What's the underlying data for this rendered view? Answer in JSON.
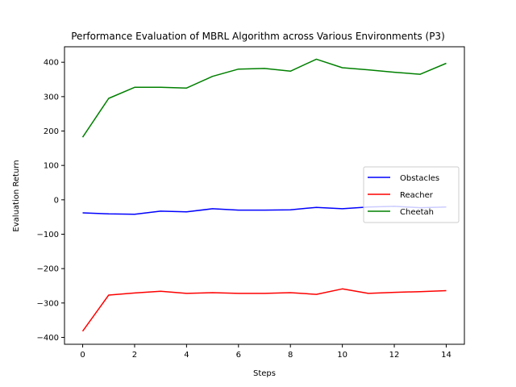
{
  "chart_data": {
    "type": "line",
    "title": "Performance Evaluation of MBRL Algorithm across Various Environments (P3)",
    "xlabel": "Steps",
    "ylabel": "Evaluation Return",
    "xlim": [
      -0.7,
      14.7
    ],
    "ylim": [
      -420,
      445
    ],
    "xticks": [
      0,
      2,
      4,
      6,
      8,
      10,
      12,
      14
    ],
    "yticks": [
      -400,
      -300,
      -200,
      -100,
      0,
      100,
      200,
      300,
      400
    ],
    "grid": false,
    "legend_position": "center-right",
    "x": [
      0,
      1,
      2,
      3,
      4,
      5,
      6,
      7,
      8,
      9,
      10,
      11,
      12,
      13,
      14
    ],
    "series": [
      {
        "name": "Obstacles",
        "color": "#0000ff",
        "values": [
          -38,
          -41,
          -42,
          -33,
          -35,
          -26,
          -30,
          -30,
          -29,
          -22,
          -26,
          -21,
          -19,
          -23,
          -21
        ]
      },
      {
        "name": "Reacher",
        "color": "#ff0000",
        "values": [
          -382,
          -277,
          -271,
          -266,
          -272,
          -270,
          -272,
          -272,
          -270,
          -275,
          -259,
          -272,
          -269,
          -267,
          -264
        ]
      },
      {
        "name": "Cheetah",
        "color": "#008000",
        "values": [
          182,
          295,
          327,
          327,
          325,
          359,
          380,
          382,
          374,
          409,
          384,
          378,
          371,
          365,
          397
        ]
      }
    ]
  }
}
